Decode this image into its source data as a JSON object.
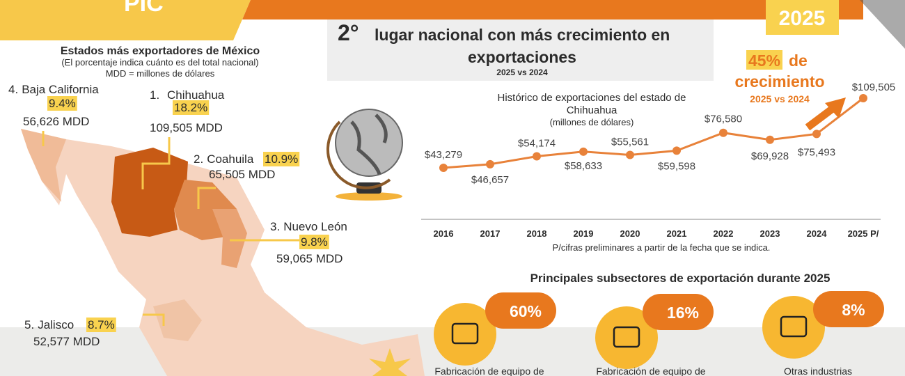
{
  "header": {
    "brand": "PIC",
    "year": "2025"
  },
  "headline": {
    "rank": "2°",
    "text": "lugar nacional con más crecimiento en",
    "text2": "exportaciones",
    "subtitle": "2025 vs 2024"
  },
  "states": {
    "title": "Estados más exportadores de México",
    "note": "(El porcentaje indica cuánto es del total nacional)",
    "unit_note": "MDD = millones de dólares",
    "items": [
      {
        "rank": "1.",
        "name": "Chihuahua",
        "percent": "18.2%",
        "value": "109,505 MDD"
      },
      {
        "rank": "2.",
        "name": "Coahuila",
        "percent": "10.9%",
        "value": "65,505 MDD"
      },
      {
        "rank": "3.",
        "name": "Nuevo León",
        "percent": "9.8%",
        "value": "59,065 MDD"
      },
      {
        "rank": "4.",
        "name": "Baja California",
        "percent": "9.4%",
        "value": "56,626 MDD"
      },
      {
        "rank": "5.",
        "name": "Jalisco",
        "percent": "8.7%",
        "value": "52,577 MDD"
      }
    ]
  },
  "chart_data": {
    "type": "line",
    "title": "Histórico de exportaciones del estado de",
    "title2": "Chihuahua",
    "subtitle": "(millones de dólares)",
    "categories": [
      "2016",
      "2017",
      "2018",
      "2019",
      "2020",
      "2021",
      "2022",
      "2023",
      "2024",
      "2025 P/"
    ],
    "values": [
      43279,
      46657,
      54174,
      58633,
      55561,
      59598,
      76580,
      69928,
      75493,
      109505
    ],
    "value_labels": [
      "$43,279",
      "$46,657",
      "$54,174",
      "$58,633",
      "$55,561",
      "$59,598",
      "$76,580",
      "$69,928",
      "$75,493",
      "$109,505"
    ],
    "color": "#e8823a",
    "note": "P/cifras preliminares a partir de la fecha que se indica.",
    "annotation": {
      "percent": "45%",
      "text": "de",
      "text2": "crecimiento",
      "period": "2025 vs 2024"
    }
  },
  "subsectors": {
    "title": "Principales subsectores de exportación durante 2025",
    "items": [
      {
        "percent": "60%",
        "label": "Fabricación de equipo de"
      },
      {
        "percent": "16%",
        "label": "Fabricación de equipo de"
      },
      {
        "percent": "8%",
        "label": "Otras industrias"
      }
    ]
  }
}
